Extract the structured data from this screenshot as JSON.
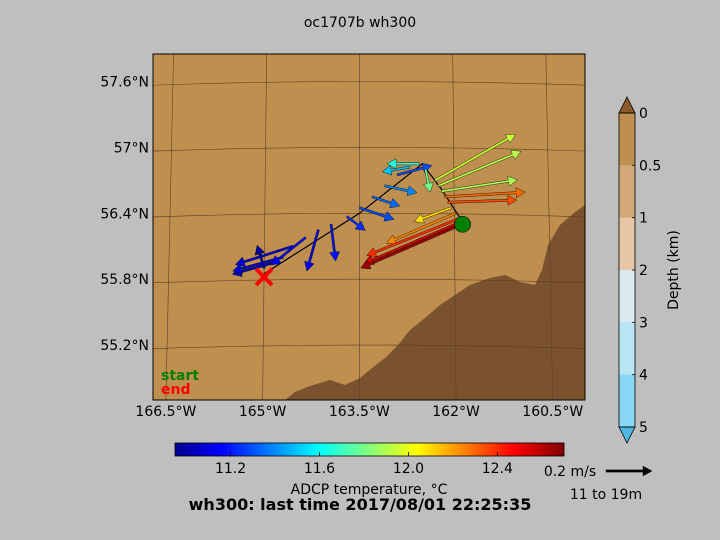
{
  "title": "oc1707b wh300",
  "footer_title": "wh300: last time 2017/08/01 22:25:35",
  "legend": {
    "start": "start",
    "end": "end",
    "start_color": "#008000",
    "end_color": "#ff0000"
  },
  "colors": {
    "background": "#bfbfbf",
    "ocean": "#bf8f50",
    "land": "#7a5230",
    "ship_track": "#000000"
  },
  "map": {
    "lon_range": [
      -166.7,
      -160.0
    ],
    "lat_range": [
      54.7,
      57.85
    ],
    "lon_ticks": [
      {
        "value": -166.5,
        "label": "166.5°W"
      },
      {
        "value": -165.0,
        "label": "165°W"
      },
      {
        "value": -163.5,
        "label": "163.5°W"
      },
      {
        "value": -162.0,
        "label": "162°W"
      },
      {
        "value": -160.5,
        "label": "160.5°W"
      }
    ],
    "lat_ticks": [
      {
        "value": 57.6,
        "label": "57.6°N"
      },
      {
        "value": 57.0,
        "label": "57°N"
      },
      {
        "value": 56.4,
        "label": "56.4°N"
      },
      {
        "value": 55.8,
        "label": "55.8°N"
      },
      {
        "value": 55.2,
        "label": "55.2°N"
      }
    ]
  },
  "chart_data": {
    "type": "scatter",
    "title": "oc1707b wh300",
    "subtitle": "wh300: last time 2017/08/01 22:25:35",
    "description_kind": "ADCP current vectors along ship track on map",
    "ship_track": [
      {
        "lon": -165.0,
        "lat": 55.85
      },
      {
        "lon": -163.5,
        "lat": 56.4
      },
      {
        "lon": -162.5,
        "lat": 56.85
      },
      {
        "lon": -162.2,
        "lat": 56.62
      },
      {
        "lon": -161.9,
        "lat": 56.35
      }
    ],
    "start": {
      "lon": -161.87,
      "lat": 56.3
    },
    "end": {
      "lon": -165.0,
      "lat": 55.82
    },
    "vectors": [
      {
        "lon": -165.0,
        "lat": 55.9,
        "u": -0.03,
        "v": 0.1,
        "temp": 11.0
      },
      {
        "lon": -164.85,
        "lat": 55.95,
        "u": -0.18,
        "v": -0.05,
        "temp": 11.05
      },
      {
        "lon": -164.7,
        "lat": 56.0,
        "u": -0.22,
        "v": -0.06,
        "temp": 11.1
      },
      {
        "lon": -164.55,
        "lat": 56.1,
        "u": -0.25,
        "v": -0.08,
        "temp": 11.1
      },
      {
        "lon": -164.35,
        "lat": 56.18,
        "u": -0.15,
        "v": -0.12,
        "temp": 11.15
      },
      {
        "lon": -164.15,
        "lat": 56.25,
        "u": -0.05,
        "v": -0.18,
        "temp": 11.15
      },
      {
        "lon": -163.95,
        "lat": 56.3,
        "u": 0.02,
        "v": -0.16,
        "temp": 11.2
      },
      {
        "lon": -163.7,
        "lat": 56.37,
        "u": 0.08,
        "v": -0.06,
        "temp": 11.25
      },
      {
        "lon": -163.5,
        "lat": 56.45,
        "u": 0.15,
        "v": -0.05,
        "temp": 11.3
      },
      {
        "lon": -163.3,
        "lat": 56.55,
        "u": 0.12,
        "v": -0.04,
        "temp": 11.35
      },
      {
        "lon": -163.1,
        "lat": 56.65,
        "u": 0.14,
        "v": -0.03,
        "temp": 11.4
      },
      {
        "lon": -162.9,
        "lat": 56.75,
        "u": 0.15,
        "v": 0.04,
        "temp": 11.3
      },
      {
        "lon": -162.7,
        "lat": 56.82,
        "u": -0.12,
        "v": -0.02,
        "temp": 11.5
      },
      {
        "lon": -162.55,
        "lat": 56.85,
        "u": -0.14,
        "v": 0.0,
        "temp": 11.65
      },
      {
        "lon": -162.45,
        "lat": 56.8,
        "u": 0.02,
        "v": -0.1,
        "temp": 11.8
      },
      {
        "lon": -162.3,
        "lat": 56.7,
        "u": 0.35,
        "v": 0.2,
        "temp": 11.95
      },
      {
        "lon": -162.25,
        "lat": 56.65,
        "u": 0.36,
        "v": 0.15,
        "temp": 11.92
      },
      {
        "lon": -162.2,
        "lat": 56.6,
        "u": 0.33,
        "v": 0.05,
        "temp": 11.9
      },
      {
        "lon": -162.15,
        "lat": 56.55,
        "u": 0.35,
        "v": 0.02,
        "temp": 12.3
      },
      {
        "lon": -162.1,
        "lat": 56.5,
        "u": 0.3,
        "v": 0.01,
        "temp": 12.35
      },
      {
        "lon": -162.05,
        "lat": 56.45,
        "u": -0.16,
        "v": -0.06,
        "temp": 12.1
      },
      {
        "lon": -161.98,
        "lat": 56.4,
        "u": -0.3,
        "v": -0.13,
        "temp": 12.25
      },
      {
        "lon": -161.93,
        "lat": 56.35,
        "u": -0.4,
        "v": -0.16,
        "temp": 12.4
      },
      {
        "lon": -161.9,
        "lat": 56.32,
        "u": -0.42,
        "v": -0.18,
        "temp": 12.55
      },
      {
        "lon": -161.88,
        "lat": 56.3,
        "u": -0.44,
        "v": -0.19,
        "temp": 12.65
      }
    ],
    "temperature_colorbar": {
      "label": "ADCP temperature, °C",
      "range": [
        10.95,
        12.7
      ],
      "ticks": [
        {
          "value": 11.2,
          "label": "11.2"
        },
        {
          "value": 11.6,
          "label": "11.6"
        },
        {
          "value": 12.0,
          "label": "12.0"
        },
        {
          "value": 12.4,
          "label": "12.4"
        }
      ]
    },
    "depth_colorbar": {
      "label": "Depth (km)",
      "range": [
        0,
        5
      ],
      "ticks": [
        {
          "value": 0,
          "label": "0"
        },
        {
          "value": 0.5,
          "label": "0.5"
        },
        {
          "value": 1,
          "label": "1"
        },
        {
          "value": 2,
          "label": "2"
        },
        {
          "value": 3,
          "label": "3"
        },
        {
          "value": 4,
          "label": "4"
        },
        {
          "value": 5,
          "label": "5"
        }
      ],
      "bands": [
        "#bf8f50",
        "#d2a878",
        "#e8c6a8",
        "#dbe9ef",
        "#b8e6f5",
        "#8ad6f5",
        "#4fb7e8"
      ]
    },
    "scale_arrow": {
      "label": "0.2 m/s",
      "depth_range": "11 to 19m",
      "speed": 0.2
    }
  }
}
